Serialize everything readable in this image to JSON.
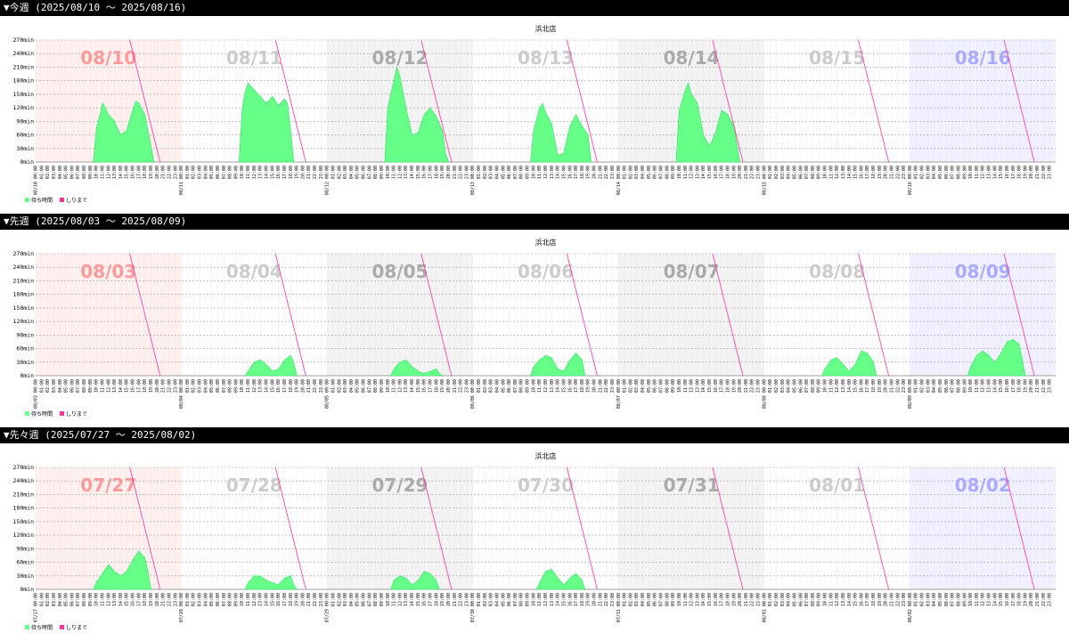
{
  "weeks": [
    {
      "header": "▼今週 (2025/08/10 ～ 2025/08/16)",
      "chart_data": {
        "type": "area",
        "title": "浜北店",
        "ylabel_unit": "min",
        "ylim": [
          0,
          270
        ],
        "yticks": [
          "0min",
          "30min",
          "60min",
          "90min",
          "120min",
          "150min",
          "180min",
          "210min",
          "240min",
          "270min"
        ],
        "days": [
          "08/10",
          "08/11",
          "08/12",
          "08/13",
          "08/14",
          "08/15",
          "08/16"
        ],
        "day_prefixes": [
          "08/10",
          "08/11",
          "08/12",
          "08/13",
          "08/14",
          "08/15",
          "08/16"
        ],
        "hour_labels": [
          "00:00",
          "01:00",
          "02:00",
          "03:00",
          "04:00",
          "05:00",
          "06:00",
          "07:00",
          "08:00",
          "09:00",
          "10:00",
          "11:00",
          "12:00",
          "13:00",
          "14:00",
          "15:00",
          "16:00",
          "17:00",
          "18:00",
          "19:00",
          "20:00",
          "21:00",
          "22:00",
          "23:00"
        ],
        "legend": [
          "待ち時間",
          "しりまで"
        ],
        "series": [
          {
            "name": "待ち時間",
            "color": "#66ff88",
            "values_by_day": [
              [
                [
                  9.5,
                  0
                ],
                [
                  10,
                  75
                ],
                [
                  10.5,
                  100
                ],
                [
                  11,
                  130
                ],
                [
                  11.5,
                  120
                ],
                [
                  12,
                  105
                ],
                [
                  13,
                  90
                ],
                [
                  14,
                  60
                ],
                [
                  15,
                  70
                ],
                [
                  16,
                  115
                ],
                [
                  16.5,
                  135
                ],
                [
                  17,
                  130
                ],
                [
                  18,
                  105
                ],
                [
                  18.5,
                  70
                ],
                [
                  19.5,
                  0
                ]
              ],
              [
                [
                  9.5,
                  0
                ],
                [
                  10,
                  115
                ],
                [
                  10.5,
                  155
                ],
                [
                  11,
                  175
                ],
                [
                  12,
                  160
                ],
                [
                  13,
                  145
                ],
                [
                  14,
                  130
                ],
                [
                  15,
                  145
                ],
                [
                  16,
                  125
                ],
                [
                  17,
                  140
                ],
                [
                  17.5,
                  130
                ],
                [
                  18,
                  70
                ],
                [
                  18.5,
                  0
                ]
              ],
              [
                [
                  9.5,
                  0
                ],
                [
                  10,
                  120
                ],
                [
                  11,
                  180
                ],
                [
                  11.5,
                  210
                ],
                [
                  12,
                  190
                ],
                [
                  13,
                  120
                ],
                [
                  14,
                  60
                ],
                [
                  15,
                  65
                ],
                [
                  16,
                  105
                ],
                [
                  17,
                  120
                ],
                [
                  18,
                  100
                ],
                [
                  19,
                  70
                ],
                [
                  19.5,
                  20
                ],
                [
                  20,
                  0
                ]
              ],
              [
                [
                  9.5,
                  0
                ],
                [
                  10,
                  70
                ],
                [
                  11,
                  120
                ],
                [
                  11.5,
                  130
                ],
                [
                  12,
                  110
                ],
                [
                  13,
                  85
                ],
                [
                  14,
                  15
                ],
                [
                  15,
                  20
                ],
                [
                  16,
                  80
                ],
                [
                  17,
                  105
                ],
                [
                  18,
                  80
                ],
                [
                  19,
                  60
                ],
                [
                  19.5,
                  0
                ]
              ],
              [
                [
                  9.5,
                  0
                ],
                [
                  10,
                  115
                ],
                [
                  11,
                  160
                ],
                [
                  11.5,
                  175
                ],
                [
                  12,
                  150
                ],
                [
                  13,
                  130
                ],
                [
                  14,
                  60
                ],
                [
                  15,
                  35
                ],
                [
                  16,
                  65
                ],
                [
                  17,
                  115
                ],
                [
                  18,
                  105
                ],
                [
                  19,
                  80
                ],
                [
                  20,
                  0
                ]
              ],
              [],
              []
            ]
          },
          {
            "name": "しりまで",
            "color": "#ff3399"
          }
        ]
      }
    },
    {
      "header": "▼先週 (2025/08/03 ～ 2025/08/09)",
      "chart_data": {
        "type": "area",
        "title": "浜北店",
        "ylabel_unit": "min",
        "ylim": [
          0,
          270
        ],
        "yticks": [
          "0min",
          "30min",
          "60min",
          "90min",
          "120min",
          "150min",
          "180min",
          "210min",
          "240min",
          "270min"
        ],
        "days": [
          "08/03",
          "08/04",
          "08/05",
          "08/06",
          "08/07",
          "08/08",
          "08/09"
        ],
        "day_prefixes": [
          "08/03",
          "08/04",
          "08/05",
          "08/06",
          "08/07",
          "08/08",
          "08/09"
        ],
        "hour_labels": [
          "00:00",
          "01:00",
          "02:00",
          "03:00",
          "04:00",
          "05:00",
          "06:00",
          "07:00",
          "08:00",
          "09:00",
          "10:00",
          "11:00",
          "12:00",
          "13:00",
          "14:00",
          "15:00",
          "16:00",
          "17:00",
          "18:00",
          "19:00",
          "20:00",
          "21:00",
          "22:00",
          "23:00"
        ],
        "legend": [
          "待ち時間",
          "しりまで"
        ],
        "series": [
          {
            "name": "待ち時間",
            "color": "#66ff88",
            "values_by_day": [
              [],
              [
                [
                  10.5,
                  0
                ],
                [
                  11,
                  10
                ],
                [
                  12,
                  30
                ],
                [
                  13,
                  35
                ],
                [
                  14,
                  25
                ],
                [
                  15,
                  10
                ],
                [
                  16,
                  15
                ],
                [
                  17,
                  35
                ],
                [
                  18,
                  45
                ],
                [
                  18.5,
                  30
                ],
                [
                  19,
                  0
                ]
              ],
              [
                [
                  10.5,
                  0
                ],
                [
                  11,
                  15
                ],
                [
                  12,
                  30
                ],
                [
                  13,
                  35
                ],
                [
                  14,
                  20
                ],
                [
                  15,
                  10
                ],
                [
                  16,
                  5
                ],
                [
                  17,
                  10
                ],
                [
                  18,
                  15
                ],
                [
                  18.5,
                  5
                ],
                [
                  19,
                  0
                ]
              ],
              [
                [
                  9.5,
                  0
                ],
                [
                  10,
                  20
                ],
                [
                  11,
                  35
                ],
                [
                  12,
                  45
                ],
                [
                  13,
                  40
                ],
                [
                  14,
                  15
                ],
                [
                  15,
                  10
                ],
                [
                  16,
                  35
                ],
                [
                  17,
                  50
                ],
                [
                  18,
                  35
                ],
                [
                  18.5,
                  0
                ]
              ],
              [],
              [
                [
                  9.5,
                  0
                ],
                [
                  10,
                  15
                ],
                [
                  11,
                  35
                ],
                [
                  12,
                  40
                ],
                [
                  13,
                  25
                ],
                [
                  14,
                  10
                ],
                [
                  15,
                  25
                ],
                [
                  16,
                  55
                ],
                [
                  17,
                  50
                ],
                [
                  18,
                  30
                ],
                [
                  18.5,
                  0
                ]
              ],
              [
                [
                  9.5,
                  0
                ],
                [
                  10,
                  20
                ],
                [
                  11,
                  45
                ],
                [
                  12,
                  55
                ],
                [
                  13,
                  45
                ],
                [
                  14,
                  30
                ],
                [
                  15,
                  50
                ],
                [
                  16,
                  75
                ],
                [
                  17,
                  80
                ],
                [
                  18,
                  70
                ],
                [
                  19,
                  0
                ]
              ]
            ]
          },
          {
            "name": "しりまで",
            "color": "#ff3399"
          }
        ]
      }
    },
    {
      "header": "▼先々週 (2025/07/27 ～ 2025/08/02)",
      "chart_data": {
        "type": "area",
        "title": "浜北店",
        "ylabel_unit": "min",
        "ylim": [
          0,
          270
        ],
        "yticks": [
          "0min",
          "30min",
          "60min",
          "90min",
          "120min",
          "150min",
          "180min",
          "210min",
          "240min",
          "270min"
        ],
        "days": [
          "07/27",
          "07/28",
          "07/29",
          "07/30",
          "07/31",
          "08/01",
          "08/02"
        ],
        "day_prefixes": [
          "07/27",
          "07/28",
          "07/29",
          "07/30",
          "07/31",
          "08/01",
          "08/02"
        ],
        "hour_labels": [
          "00:00",
          "01:00",
          "02:00",
          "03:00",
          "04:00",
          "05:00",
          "06:00",
          "07:00",
          "08:00",
          "09:00",
          "10:00",
          "11:00",
          "12:00",
          "13:00",
          "14:00",
          "15:00",
          "16:00",
          "17:00",
          "18:00",
          "19:00",
          "20:00",
          "21:00",
          "22:00",
          "23:00"
        ],
        "legend": [
          "待ち時間",
          "しりまで"
        ],
        "series": [
          {
            "name": "待ち時間",
            "color": "#66ff88",
            "values_by_day": [
              [
                [
                  9.5,
                  0
                ],
                [
                  10,
                  15
                ],
                [
                  11,
                  35
                ],
                [
                  12,
                  55
                ],
                [
                  13,
                  40
                ],
                [
                  14,
                  30
                ],
                [
                  15,
                  40
                ],
                [
                  16,
                  65
                ],
                [
                  17,
                  85
                ],
                [
                  18,
                  70
                ],
                [
                  18.5,
                  40
                ],
                [
                  19,
                  0
                ]
              ],
              [
                [
                  10.5,
                  0
                ],
                [
                  11,
                  15
                ],
                [
                  12,
                  30
                ],
                [
                  13,
                  30
                ],
                [
                  14,
                  20
                ],
                [
                  15,
                  15
                ],
                [
                  16,
                  10
                ],
                [
                  17,
                  25
                ],
                [
                  18,
                  30
                ],
                [
                  18.5,
                  10
                ],
                [
                  19,
                  0
                ]
              ],
              [
                [
                  10.5,
                  0
                ],
                [
                  11,
                  20
                ],
                [
                  12,
                  30
                ],
                [
                  13,
                  25
                ],
                [
                  14,
                  10
                ],
                [
                  15,
                  20
                ],
                [
                  16,
                  40
                ],
                [
                  17,
                  35
                ],
                [
                  18,
                  20
                ],
                [
                  18.5,
                  0
                ]
              ],
              [
                [
                  10.5,
                  0
                ],
                [
                  11,
                  15
                ],
                [
                  12,
                  40
                ],
                [
                  13,
                  45
                ],
                [
                  14,
                  25
                ],
                [
                  15,
                  10
                ],
                [
                  16,
                  25
                ],
                [
                  17,
                  35
                ],
                [
                  18,
                  20
                ],
                [
                  18.5,
                  0
                ]
              ],
              [],
              [],
              []
            ]
          },
          {
            "name": "しりまで",
            "color": "#ff3399"
          }
        ]
      }
    }
  ],
  "colors": {
    "day_label_colors": [
      "#ff9a9a",
      "#cccccc",
      "#aaaaaa",
      "#cccccc",
      "#aaaaaa",
      "#cccccc",
      "#aaaaff"
    ],
    "day_bg_colors": [
      "#fff0f0",
      "#ffffff",
      "#f3f3f3",
      "#ffffff",
      "#f3f3f3",
      "#ffffff",
      "#f0f0ff"
    ],
    "area_fill": "#66ff88",
    "area_stroke": "#33dd66",
    "line_color": "#ff3399"
  }
}
